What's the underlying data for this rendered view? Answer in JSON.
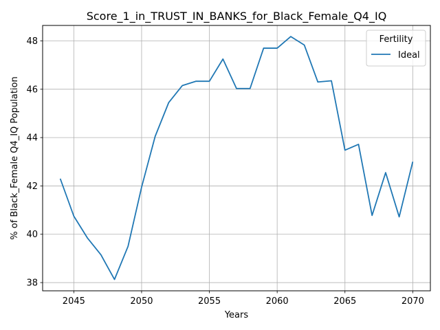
{
  "chart_data": {
    "type": "line",
    "title": "Score_1_in_TRUST_IN_BANKS_for_Black_Female_Q4_IQ",
    "xlabel": "Years",
    "ylabel": "% of Black_Female Q4_IQ Population",
    "xlim": [
      2042.7,
      2071.3
    ],
    "ylim": [
      37.66,
      48.64
    ],
    "xticks": [
      2045,
      2050,
      2055,
      2060,
      2065,
      2070
    ],
    "yticks": [
      38,
      40,
      42,
      44,
      46,
      48
    ],
    "grid": true,
    "legend": {
      "title": "Fertility",
      "position": "top-right"
    },
    "series": [
      {
        "name": "Ideal",
        "color": "#1f77b4",
        "x": [
          2044,
          2045,
          2046,
          2047,
          2048,
          2049,
          2050,
          2051,
          2052,
          2053,
          2054,
          2055,
          2056,
          2057,
          2058,
          2059,
          2060,
          2061,
          2062,
          2063,
          2064,
          2065,
          2066,
          2067,
          2068,
          2069,
          2070
        ],
        "y": [
          42.3,
          40.75,
          39.85,
          39.15,
          38.13,
          39.5,
          41.95,
          44.05,
          45.45,
          46.15,
          46.33,
          46.33,
          47.25,
          46.03,
          46.03,
          47.7,
          47.7,
          48.18,
          47.83,
          46.3,
          46.35,
          43.48,
          43.72,
          40.78,
          42.55,
          40.72,
          43.0
        ]
      }
    ]
  }
}
